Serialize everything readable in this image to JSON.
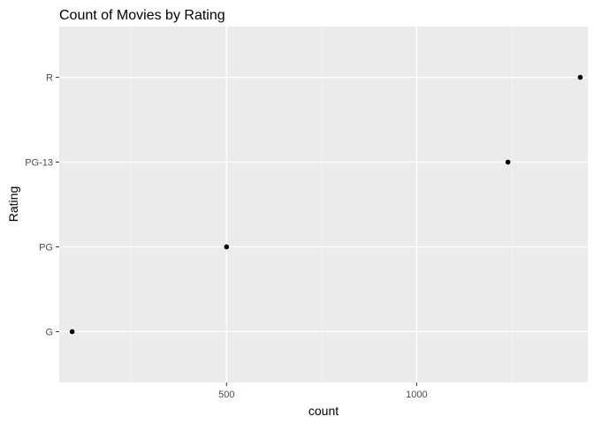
{
  "chart_data": {
    "type": "scatter",
    "title": "Count of Movies by Rating",
    "xlabel": "count",
    "ylabel": "Rating",
    "categories": [
      "G",
      "PG",
      "PG-13",
      "R"
    ],
    "values": [
      94,
      500,
      1240,
      1430
    ],
    "xlim": [
      60,
      1450
    ],
    "x_major_ticks": [
      500,
      1000
    ],
    "x_minor_ticks": [
      250,
      750,
      1250
    ],
    "grid": true,
    "legend": "none",
    "colors": {
      "panel_background": "#ebebeb",
      "grid_major": "#ffffff",
      "grid_minor": "#f5f5f5",
      "point": "#000000",
      "tick_mark": "#333333"
    }
  }
}
